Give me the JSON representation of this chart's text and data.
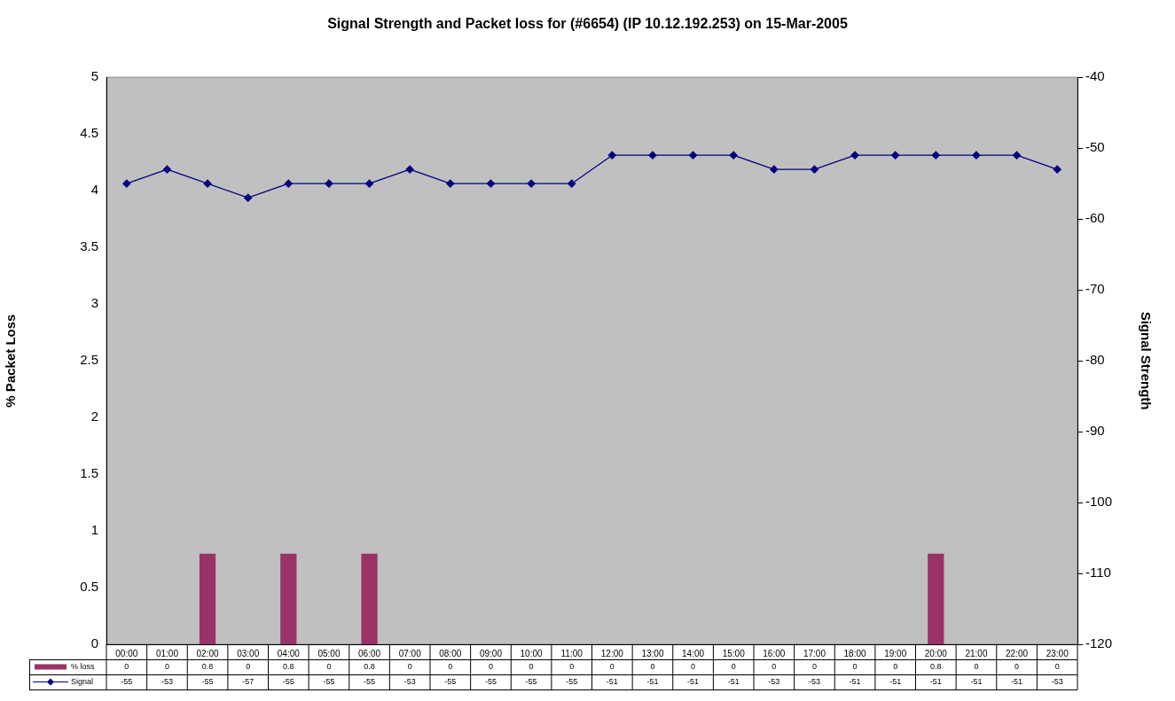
{
  "chart_data": {
    "type": "bar",
    "title": "Signal Strength and Packet loss for (#6654) (IP 10.12.192.253) on 15-Mar-2005",
    "ylabel": "% Packet Loss",
    "y2label": "Signal Strength",
    "categories": [
      "00:00",
      "01:00",
      "02:00",
      "03:00",
      "04:00",
      "05:00",
      "06:00",
      "07:00",
      "08:00",
      "09:00",
      "10:00",
      "11:00",
      "12:00",
      "13:00",
      "14:00",
      "15:00",
      "16:00",
      "17:00",
      "18:00",
      "19:00",
      "20:00",
      "21:00",
      "22:00",
      "23:00"
    ],
    "series": [
      {
        "name": "% loss",
        "color": "#993366",
        "values": [
          0,
          0,
          0.8,
          0,
          0.8,
          0,
          0.8,
          0,
          0,
          0,
          0,
          0,
          0,
          0,
          0,
          0,
          0,
          0,
          0,
          0,
          0.8,
          0,
          0,
          0
        ]
      },
      {
        "name": "Signal",
        "type": "line",
        "axis": "y2",
        "color": "#000080",
        "marker": "diamond",
        "values": [
          -55,
          -53,
          -55,
          -57,
          -55,
          -55,
          -55,
          -53,
          -55,
          -55,
          -55,
          -55,
          -51,
          -51,
          -51,
          -51,
          -53,
          -53,
          -51,
          -51,
          -51,
          -51,
          -51,
          -53
        ]
      }
    ],
    "ylim": [
      0,
      5
    ],
    "yticks": [
      0,
      0.5,
      1,
      1.5,
      2,
      2.5,
      3,
      3.5,
      4,
      4.5,
      5
    ],
    "y2lim": [
      -120,
      -40
    ],
    "y2ticks": [
      -120,
      -110,
      -100,
      -90,
      -80,
      -70,
      -60,
      -50,
      -40
    ],
    "grid": false,
    "legend": "bottom left",
    "data_labels": true
  }
}
